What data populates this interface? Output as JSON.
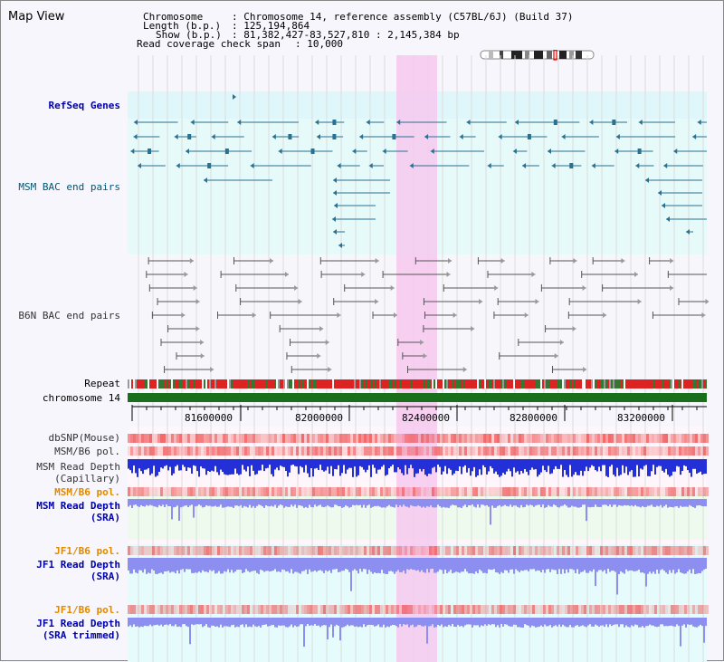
{
  "header": {
    "title": "Map View",
    "chromosome_label": "Chromosome",
    "chromosome_value": ": Chromosome 14, reference assembly (C57BL/6J) (Build 37)",
    "length_label": "Length (b.p.)",
    "length_value": ": 125,194,864",
    "show_label": "Show (b.p.)",
    "show_value": ": 81,382,427-83,527,810 : 2,145,384 bp",
    "coverage_label": "Read coverage check span",
    "coverage_value": ": 10,000"
  },
  "tracks": {
    "refseq": "RefSeq Genes",
    "msm_bac": "MSM BAC end pairs",
    "b6n_bac": "B6N BAC end pairs",
    "repeat": "Repeat",
    "chromosome": "chromosome 14",
    "dbsnp": "dbSNP(Mouse)",
    "msm_b6_pol_1": "MSM/B6 pol.",
    "msm_read_depth_cap_1": "MSM Read Depth",
    "msm_read_depth_cap_2": "(Capillary)",
    "msm_b6_pol_2": "MSM/B6 pol.",
    "msm_read_depth_sra_1": "MSM Read Depth",
    "msm_read_depth_sra_2": "(SRA)",
    "jf1_b6_pol_1": "JF1/B6 pol.",
    "jf1_read_depth_sra_1": "JF1 Read Depth",
    "jf1_read_depth_sra_2": "(SRA)",
    "jf1_b6_pol_2": "JF1/B6 pol.",
    "jf1_read_depth_trim_1": "JF1 Read Depth",
    "jf1_read_depth_trim_2": "(SRA trimmed)"
  },
  "axis": {
    "ticks": [
      "81600000",
      "82000000",
      "82400000",
      "82800000",
      "83200000"
    ]
  },
  "colors": {
    "refseq_bg": "#dff6fb",
    "msm_bac_bg": "#e6fafa",
    "b6n_bac_bg": "#f7f7fb",
    "highlight": "#f7c9ee",
    "gene": "#2a7090",
    "b6n": "#555555",
    "chrom": "#1a6f1a",
    "depth_blue": "#2330d8",
    "depth_light": "#8c8ff0",
    "pol_red": "#ee4444",
    "label_blue": "#0000aa",
    "label_orange": "#e08a00",
    "label_teal": "#005577"
  }
}
